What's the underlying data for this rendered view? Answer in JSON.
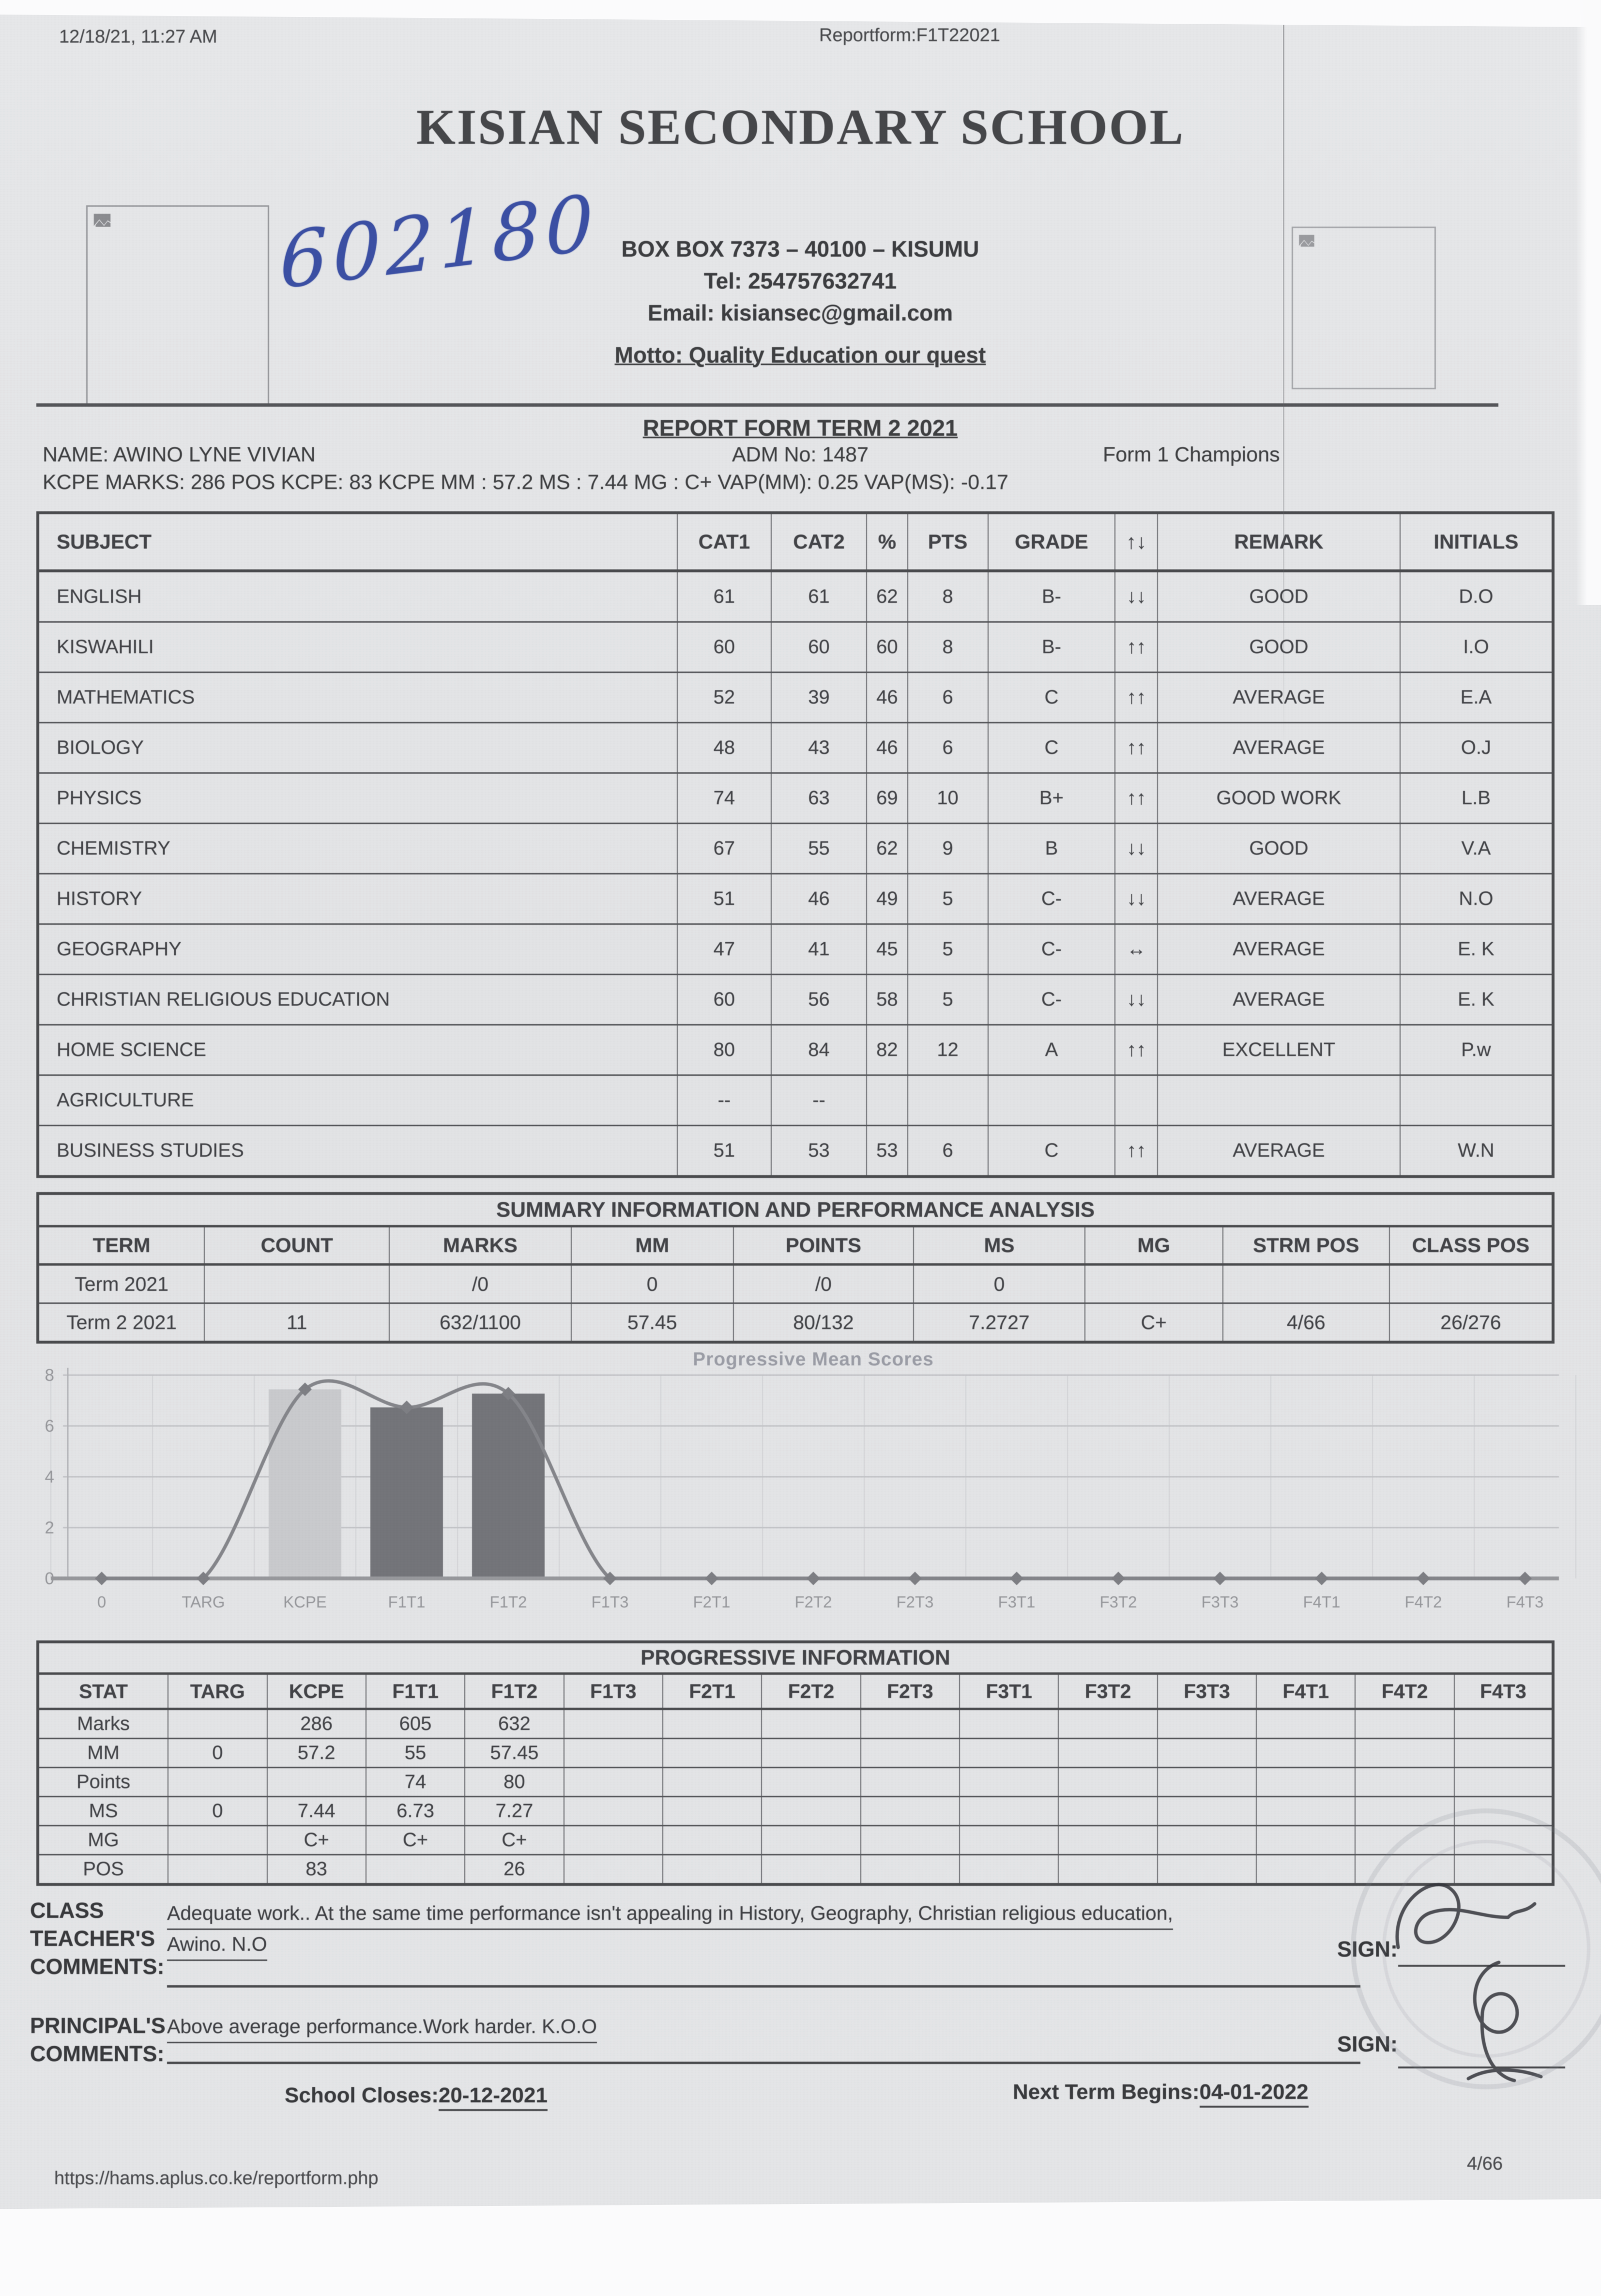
{
  "meta": {
    "datetime": "12/18/21, 11:27 AM",
    "doc_title": "Reportform:F1T22021"
  },
  "school": {
    "name": "KISIAN SECONDARY SCHOOL",
    "address": "BOX BOX 7373 – 40100 – KISUMU",
    "tel": "Tel: 254757632741",
    "email": "Email: kisiansec@gmail.com",
    "motto": "Motto: Quality Education our quest",
    "handwritten_number": "602180",
    "left_placeholder_icon": "broken-image-icon",
    "right_placeholder_icon": "broken-image-icon"
  },
  "report": {
    "title": "REPORT FORM TERM 2 2021",
    "name_line": "NAME: AWINO LYNE VIVIAN",
    "adm_line": "ADM No: 1487",
    "class_line": "Form 1 Champions",
    "kcpe_line": "KCPE MARKS: 286 POS KCPE: 83 KCPE MM : 57.2 MS : 7.44 MG : C+ VAP(MM): 0.25 VAP(MS): -0.17"
  },
  "subjects": {
    "headers": [
      "SUBJECT",
      "CAT1",
      "CAT2",
      "%",
      "PTS",
      "GRADE",
      "↑↓",
      "REMARK",
      "INITIALS"
    ],
    "rows": [
      [
        "ENGLISH",
        "61",
        "61",
        "62",
        "8",
        "B-",
        "↓↓",
        "GOOD",
        "D.O"
      ],
      [
        "KISWAHILI",
        "60",
        "60",
        "60",
        "8",
        "B-",
        "↑↑",
        "GOOD",
        "I.O"
      ],
      [
        "MATHEMATICS",
        "52",
        "39",
        "46",
        "6",
        "C",
        "↑↑",
        "AVERAGE",
        "E.A"
      ],
      [
        "BIOLOGY",
        "48",
        "43",
        "46",
        "6",
        "C",
        "↑↑",
        "AVERAGE",
        "O.J"
      ],
      [
        "PHYSICS",
        "74",
        "63",
        "69",
        "10",
        "B+",
        "↑↑",
        "GOOD WORK",
        "L.B"
      ],
      [
        "CHEMISTRY",
        "67",
        "55",
        "62",
        "9",
        "B",
        "↓↓",
        "GOOD",
        "V.A"
      ],
      [
        "HISTORY",
        "51",
        "46",
        "49",
        "5",
        "C-",
        "↓↓",
        "AVERAGE",
        "N.O"
      ],
      [
        "GEOGRAPHY",
        "47",
        "41",
        "45",
        "5",
        "C-",
        "↔",
        "AVERAGE",
        "E. K"
      ],
      [
        "CHRISTIAN RELIGIOUS EDUCATION",
        "60",
        "56",
        "58",
        "5",
        "C-",
        "↓↓",
        "AVERAGE",
        "E. K"
      ],
      [
        "HOME SCIENCE",
        "80",
        "84",
        "82",
        "12",
        "A",
        "↑↑",
        "EXCELLENT",
        "P.w"
      ],
      [
        "AGRICULTURE",
        "--",
        "--",
        "",
        "",
        "",
        "",
        "",
        ""
      ],
      [
        "BUSINESS STUDIES",
        "51",
        "53",
        "53",
        "6",
        "C",
        "↑↑",
        "AVERAGE",
        "W.N"
      ]
    ]
  },
  "summary": {
    "title": "SUMMARY INFORMATION AND PERFORMANCE ANALYSIS",
    "headers": [
      "TERM",
      "COUNT",
      "MARKS",
      "MM",
      "POINTS",
      "MS",
      "MG",
      "STRM POS",
      "CLASS POS"
    ],
    "rows": [
      [
        "Term 2021",
        "",
        "/0",
        "0",
        "/0",
        "0",
        "",
        "",
        ""
      ],
      [
        "Term 2 2021",
        "11",
        "632/1100",
        "57.45",
        "80/132",
        "7.2727",
        "C+",
        "4/66",
        "26/276"
      ]
    ]
  },
  "chart_data": {
    "type": "bar",
    "title": "Progressive Mean Scores",
    "categories": [
      "0",
      "TARG",
      "KCPE",
      "F1T1",
      "F1T2",
      "F1T3",
      "F2T1",
      "F2T2",
      "F2T3",
      "F3T1",
      "F3T2",
      "F3T3",
      "F4T1",
      "F4T2",
      "F4T3"
    ],
    "series": [
      {
        "name": "Mean Score bars",
        "type": "bar",
        "points": [
          {
            "category": "KCPE",
            "value": 7.44,
            "color": "#c9cacd"
          },
          {
            "category": "F1T1",
            "value": 6.73,
            "color": "#74757a"
          },
          {
            "category": "F1T2",
            "value": 7.27,
            "color": "#74757a"
          }
        ]
      },
      {
        "name": "Mean Score smoothed line",
        "type": "line",
        "color": "#85868b",
        "values": [
          0,
          0,
          7.44,
          6.73,
          7.27,
          0,
          0,
          0,
          0,
          0,
          0,
          0,
          0,
          0,
          0
        ]
      }
    ],
    "xlabel": "",
    "ylabel": "",
    "ylim": [
      0,
      8
    ],
    "yticks": [
      0,
      2,
      4,
      6,
      8
    ],
    "grid": true,
    "legend_position": "none",
    "axis_label_color": "#96979b"
  },
  "progressive": {
    "title": "PROGRESSIVE INFORMATION",
    "headers": [
      "STAT",
      "TARG",
      "KCPE",
      "F1T1",
      "F1T2",
      "F1T3",
      "F2T1",
      "F2T2",
      "F2T3",
      "F3T1",
      "F3T2",
      "F3T3",
      "F4T1",
      "F4T2",
      "F4T3"
    ],
    "rows": [
      [
        "Marks",
        "",
        "286",
        "605",
        "632",
        "",
        "",
        "",
        "",
        "",
        "",
        "",
        "",
        "",
        ""
      ],
      [
        "MM",
        "0",
        "57.2",
        "55",
        "57.45",
        "",
        "",
        "",
        "",
        "",
        "",
        "",
        "",
        "",
        ""
      ],
      [
        "Points",
        "",
        "",
        "74",
        "80",
        "",
        "",
        "",
        "",
        "",
        "",
        "",
        "",
        "",
        ""
      ],
      [
        "MS",
        "0",
        "7.44",
        "6.73",
        "7.27",
        "",
        "",
        "",
        "",
        "",
        "",
        "",
        "",
        "",
        ""
      ],
      [
        "MG",
        "",
        "C+",
        "C+",
        "C+",
        "",
        "",
        "",
        "",
        "",
        "",
        "",
        "",
        "",
        ""
      ],
      [
        "POS",
        "",
        "83",
        "",
        "26",
        "",
        "",
        "",
        "",
        "",
        "",
        "",
        "",
        "",
        ""
      ]
    ]
  },
  "comments": {
    "class_label_lines": [
      "CLASS",
      "TEACHER'S",
      "COMMENTS:"
    ],
    "class_comment_line1": "Adequate work.. At the same time performance isn't appealing in History, Geography, Christian religious education,",
    "class_comment_line2": "Awino. N.O",
    "principal_label_lines": [
      "PRINCIPAL'S",
      "COMMENTS:"
    ],
    "principal_comment": "Above average performance.Work harder. K.O.O",
    "sign_label": "SIGN:"
  },
  "footer": {
    "school_closes_label": "School Closes:",
    "school_closes_date": "20-12-2021",
    "next_term_label": "Next Term Begins:",
    "next_term_date": "04-01-2022",
    "url": "https://hams.aplus.co.ke/reportform.php",
    "page": "4/66"
  }
}
